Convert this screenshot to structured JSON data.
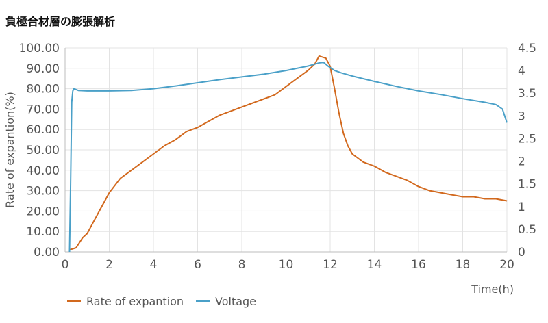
{
  "chart_data": {
    "type": "line",
    "title": "負極合材層の膨張解析",
    "xlabel": "Time(h)",
    "ylabel": "Rate of expantion(%)",
    "y2label": "",
    "xlim": [
      0,
      20
    ],
    "ylim": [
      0,
      100
    ],
    "y2lim": [
      0,
      4.5
    ],
    "x_ticks": [
      "0",
      "2",
      "4",
      "6",
      "8",
      "10",
      "12",
      "14",
      "16",
      "18",
      "20"
    ],
    "y_ticks": [
      "0.00",
      "10.00",
      "20.00",
      "30.00",
      "40.00",
      "50.00",
      "60.00",
      "70.00",
      "80.00",
      "90.00",
      "100.00"
    ],
    "y2_ticks": [
      "0",
      "0.5",
      "1",
      "1.5",
      "2",
      "2.5",
      "3",
      "3.5",
      "4",
      "4.5"
    ],
    "grid": true,
    "legend_position": "bottom-left",
    "series": [
      {
        "name": "Rate of expantion",
        "axis": "left",
        "color": "#d2691e",
        "x": [
          0.2,
          0.5,
          0.8,
          1.0,
          1.3,
          1.6,
          2.0,
          2.5,
          3.0,
          3.5,
          4.0,
          4.5,
          5.0,
          5.5,
          6.0,
          6.5,
          7.0,
          7.5,
          8.0,
          8.5,
          9.0,
          9.5,
          10.0,
          10.5,
          11.0,
          11.3,
          11.5,
          11.8,
          12.0,
          12.2,
          12.4,
          12.6,
          12.8,
          13.0,
          13.5,
          14.0,
          14.5,
          15.0,
          15.5,
          16.0,
          16.5,
          17.0,
          17.5,
          18.0,
          18.5,
          19.0,
          19.5,
          20.0
        ],
        "y": [
          1,
          2,
          7,
          9,
          15,
          21,
          29,
          36,
          40,
          44,
          48,
          52,
          55,
          59,
          61,
          64,
          67,
          69,
          71,
          73,
          75,
          77,
          81,
          85,
          89,
          92,
          96,
          95,
          91,
          80,
          68,
          58,
          52,
          48,
          44,
          42,
          39,
          37,
          35,
          32,
          30,
          29,
          28,
          27,
          27,
          26,
          26,
          25
        ]
      },
      {
        "name": "Voltage",
        "axis": "right",
        "color": "#4aa0c8",
        "x": [
          0.2,
          0.25,
          0.3,
          0.35,
          0.4,
          0.6,
          1.0,
          2.0,
          3.0,
          4.0,
          5.0,
          6.0,
          7.0,
          8.0,
          9.0,
          10.0,
          11.0,
          11.5,
          11.7,
          11.9,
          12.2,
          12.5,
          13.0,
          14.0,
          15.0,
          16.0,
          17.0,
          18.0,
          19.0,
          19.5,
          19.8,
          20.0
        ],
        "y": [
          0.0,
          1.5,
          3.3,
          3.55,
          3.6,
          3.56,
          3.55,
          3.55,
          3.56,
          3.6,
          3.66,
          3.73,
          3.8,
          3.86,
          3.92,
          4.0,
          4.1,
          4.17,
          4.18,
          4.1,
          4.0,
          3.95,
          3.88,
          3.76,
          3.65,
          3.55,
          3.47,
          3.38,
          3.3,
          3.25,
          3.15,
          2.85
        ]
      }
    ]
  }
}
